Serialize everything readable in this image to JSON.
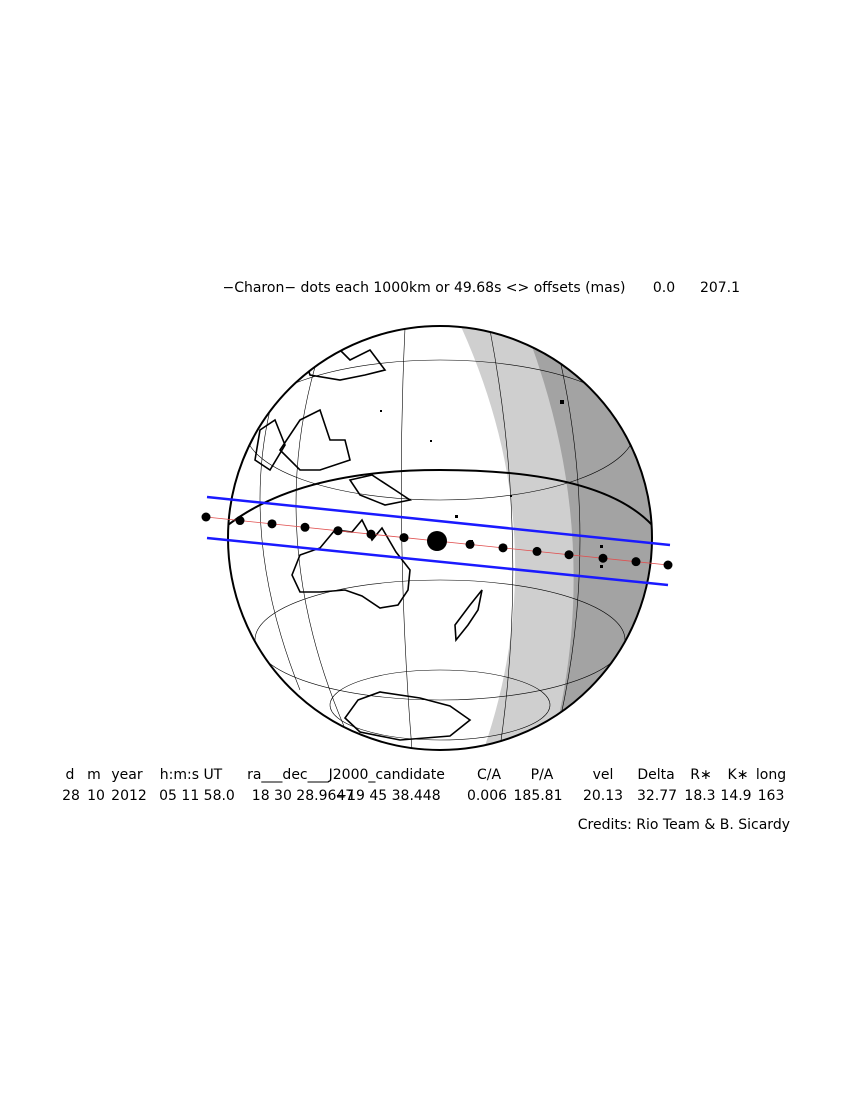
{
  "title": "−Charon− dots each 1000km or 49.68s <> offsets (mas)",
  "offsets": [
    "0.0",
    "207.1"
  ],
  "table": {
    "headers": [
      "d",
      "m",
      "year",
      "h:m:s UT",
      "ra___dec___J2000_candidate",
      "C/A",
      "P/A",
      "vel",
      "Delta",
      "R∗",
      "K∗",
      "long"
    ],
    "values": [
      "28",
      "10",
      "2012",
      "05 11 58.0",
      "18 30 28.9647",
      "−19 45 38.448",
      "0.006",
      "185.81",
      "20.13",
      "32.77",
      "18.3",
      "14.9",
      "163"
    ]
  },
  "credits": "Credits: Rio Team & B. Sicardy"
}
